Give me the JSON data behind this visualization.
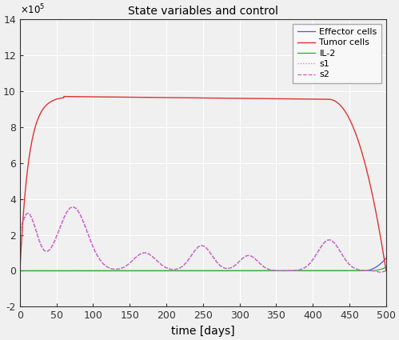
{
  "title": "State variables and control",
  "xlabel": "time [days]",
  "ylim": [
    -200000,
    1400000
  ],
  "xlim": [
    0,
    500
  ],
  "ytick_vals": [
    -200000,
    0,
    200000,
    400000,
    600000,
    800000,
    1000000,
    1200000,
    1400000
  ],
  "ytick_labels": [
    "-2",
    "0",
    "2",
    "4",
    "6",
    "8",
    "10",
    "12",
    "14"
  ],
  "xtick_vals": [
    0,
    50,
    100,
    150,
    200,
    250,
    300,
    350,
    400,
    450,
    500
  ],
  "lines": {
    "effector": {
      "color": "#5555dd",
      "lw": 0.9,
      "ls": "solid",
      "label": "Effector cells"
    },
    "tumor": {
      "color": "#dd3333",
      "lw": 1.0,
      "ls": "solid",
      "label": "Tumor cells"
    },
    "il2": {
      "color": "#33aa33",
      "lw": 0.9,
      "ls": "solid",
      "label": "IL-2"
    },
    "s1": {
      "color": "#bb88bb",
      "lw": 0.9,
      "ls": "dotted",
      "label": "s1"
    },
    "s2": {
      "color": "#cc55cc",
      "lw": 0.9,
      "ls": "dashed",
      "label": "s2"
    }
  },
  "bg_color": "#f0f0f0",
  "grid_color": "#ffffff",
  "fig_color": "#f0f0f0"
}
